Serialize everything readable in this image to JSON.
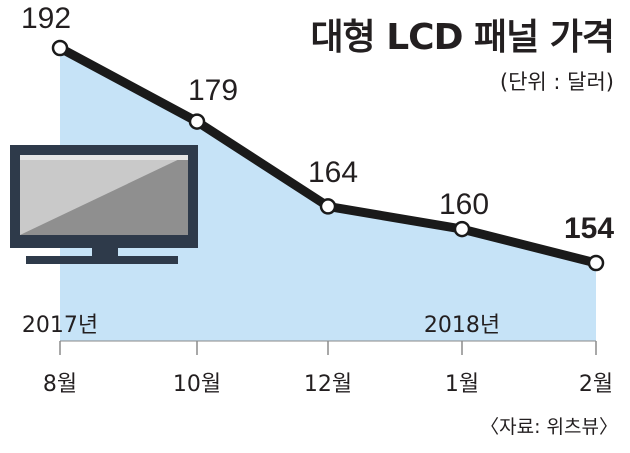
{
  "title": "대형 LCD 패널 가격",
  "unit": "(단위 : 달러)",
  "source": "〈자료: 위츠뷰〉",
  "colors": {
    "area": "#c6e3f7",
    "line": "#1a1a1a",
    "marker_fill": "#ffffff",
    "tv_frame": "#2e3a4a",
    "tv_screen_light": "#c9c9c9",
    "tv_screen_dark": "#8f8f8f"
  },
  "icons": [
    "tv-monitor-icon"
  ],
  "chart_data": {
    "type": "area",
    "categories": [
      "8월",
      "10월",
      "12월",
      "1월",
      "2월"
    ],
    "values": [
      192,
      179,
      164,
      160,
      154
    ],
    "value_labels": [
      "192",
      "179",
      "164",
      "160",
      "154"
    ],
    "highlight_last": true,
    "year_labels": [
      {
        "text": "2017년",
        "category_index": 0
      },
      {
        "text": "2018년",
        "category_index": 3
      }
    ],
    "ylim": [
      100,
      200
    ],
    "grid": false,
    "legend": "none"
  }
}
